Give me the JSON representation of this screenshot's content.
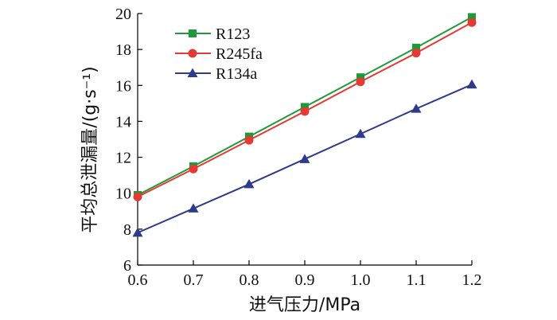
{
  "chart_data": {
    "type": "line",
    "xlabel": "进气压力/MPa",
    "ylabel": "平均总泄漏量/(g·s⁻¹)",
    "x": [
      0.6,
      0.7,
      0.8,
      0.9,
      1.0,
      1.1,
      1.2
    ],
    "x_tick_labels": [
      "0.6",
      "0.7",
      "0.8",
      "0.9",
      "1.0",
      "1.1",
      "1.2"
    ],
    "y_ticks": [
      6,
      8,
      10,
      12,
      14,
      16,
      18,
      20
    ],
    "y_tick_labels": [
      "6",
      "8",
      "10",
      "12",
      "14",
      "16",
      "18",
      "20"
    ],
    "xlim": [
      0.6,
      1.2
    ],
    "ylim": [
      6,
      20
    ],
    "grid": false,
    "legend_position": "top-left",
    "series": [
      {
        "name": "R123",
        "color": "#1f9a3a",
        "marker": "square",
        "values": [
          9.9,
          11.5,
          13.15,
          14.8,
          16.45,
          18.1,
          19.8
        ]
      },
      {
        "name": "R245fa",
        "color": "#e53935",
        "marker": "circle",
        "values": [
          9.8,
          11.35,
          12.95,
          14.55,
          16.2,
          17.8,
          19.5
        ]
      },
      {
        "name": "R134a",
        "color": "#2e3a8c",
        "marker": "triangle",
        "values": [
          7.8,
          9.15,
          10.5,
          11.9,
          13.3,
          14.7,
          16.05
        ]
      }
    ]
  }
}
